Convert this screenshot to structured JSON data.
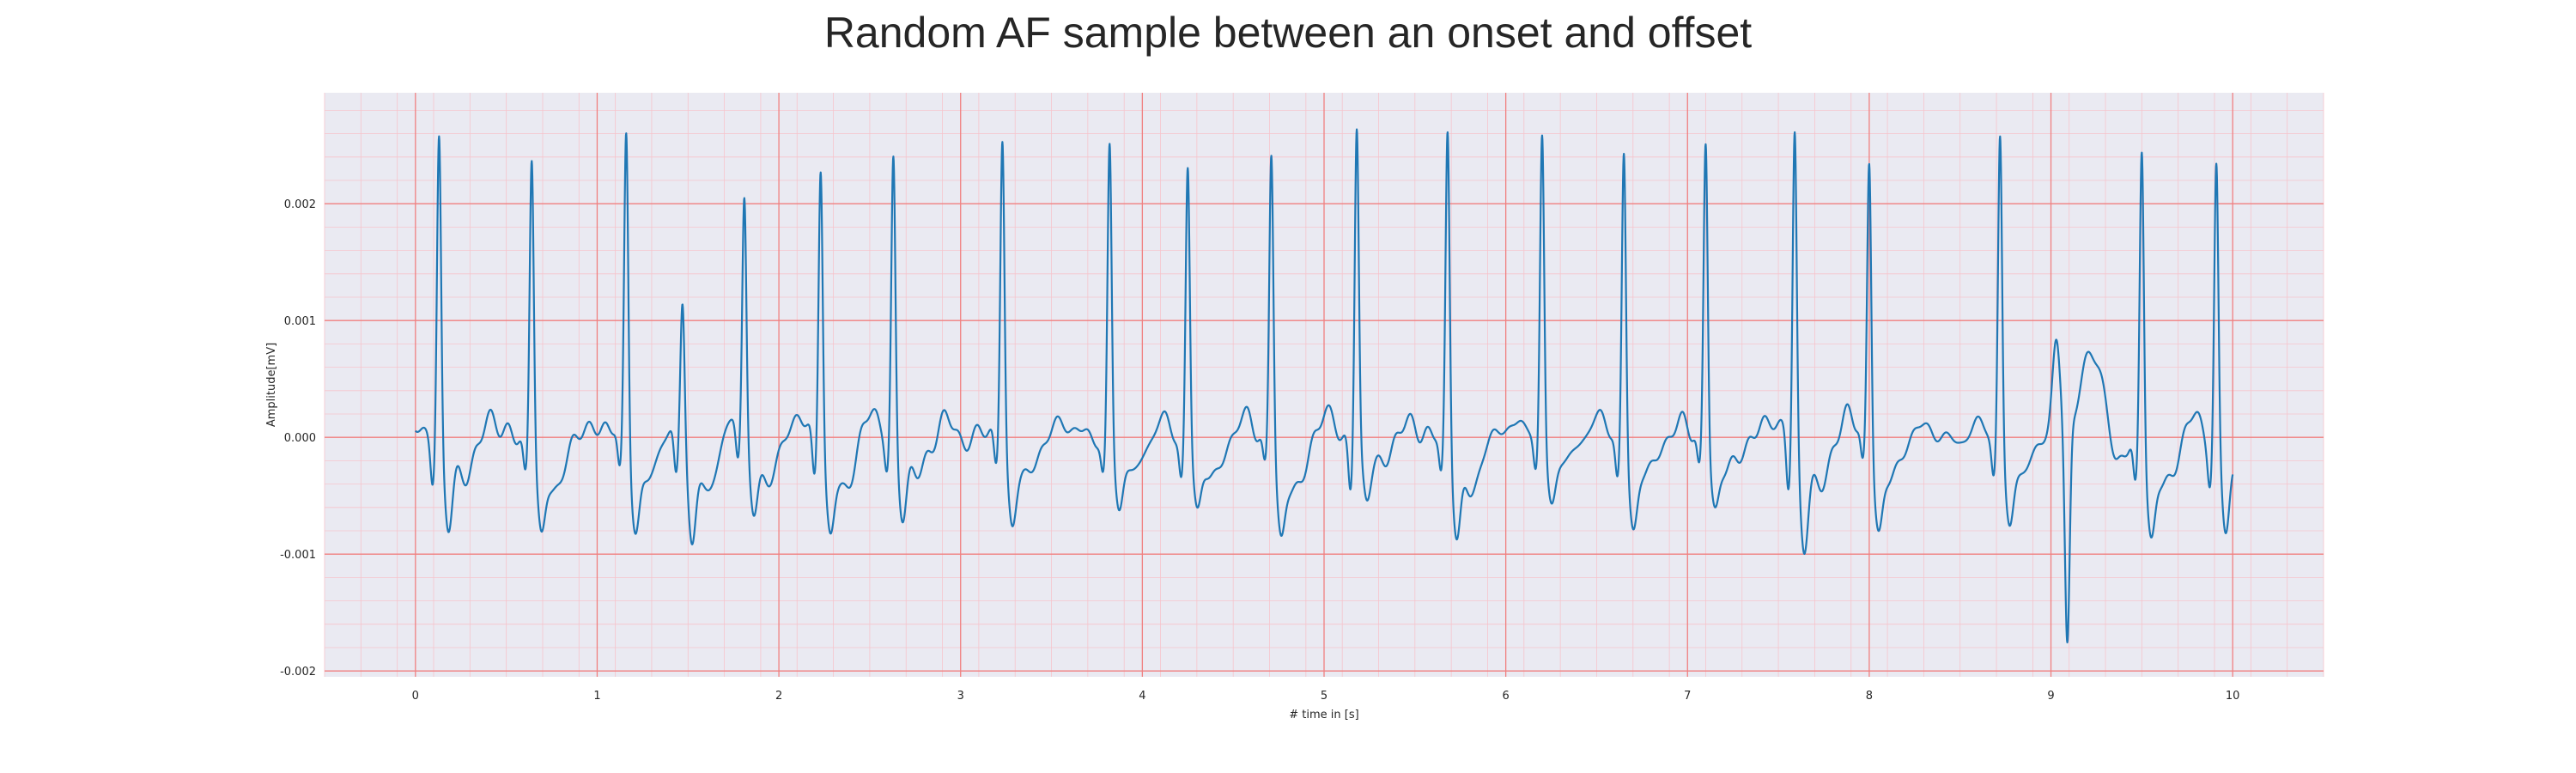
{
  "chart_data": {
    "type": "line",
    "title": "Random AF sample between an onset and offset",
    "xlabel": "# time in [s]",
    "ylabel": "Amplitude[mV]",
    "xlim": [
      -0.5,
      10.5
    ],
    "ylim": [
      -0.00205,
      0.00295
    ],
    "x_ticks": [
      0,
      1,
      2,
      3,
      4,
      5,
      6,
      7,
      8,
      9,
      10
    ],
    "x_tick_labels": [
      "0",
      "1",
      "2",
      "3",
      "4",
      "5",
      "6",
      "7",
      "8",
      "9",
      "10"
    ],
    "y_ticks": [
      -0.002,
      -0.001,
      0.0,
      0.001,
      0.002
    ],
    "y_tick_labels": [
      "-0.002",
      "-0.001",
      "0.000",
      "0.001",
      "0.002"
    ],
    "grid": true,
    "major_grid_color": "#f08080",
    "minor_grid_color": "#f6c4cc",
    "plot_background": "#eaeaf2",
    "series": [
      {
        "color": "#1f77b4",
        "beats": [
          {
            "t": 0.13,
            "r": 0.00263
          },
          {
            "t": 0.64,
            "r": 0.00248
          },
          {
            "t": 1.16,
            "r": 0.00265
          },
          {
            "t": 1.47,
            "r": 0.00111
          },
          {
            "t": 1.81,
            "r": 0.00199
          },
          {
            "t": 2.23,
            "r": 0.00237
          },
          {
            "t": 2.63,
            "r": 0.00239
          },
          {
            "t": 3.23,
            "r": 0.00258
          },
          {
            "t": 3.82,
            "r": 0.00252
          },
          {
            "t": 4.25,
            "r": 0.00233
          },
          {
            "t": 4.71,
            "r": 0.00248
          },
          {
            "t": 5.18,
            "r": 0.0027
          },
          {
            "t": 5.68,
            "r": 0.00266
          },
          {
            "t": 6.2,
            "r": 0.00262
          },
          {
            "t": 6.65,
            "r": 0.00253
          },
          {
            "t": 7.1,
            "r": 0.00257
          },
          {
            "t": 7.59,
            "r": 0.0027
          },
          {
            "t": 8.0,
            "r": 0.00242
          },
          {
            "t": 8.72,
            "r": 0.00266
          },
          {
            "t": 9.5,
            "r": 0.00256
          },
          {
            "t": 9.91,
            "r": 0.00236
          }
        ],
        "anomaly": {
          "t": 9.09,
          "min": -0.00187,
          "max": 0.00075
        },
        "t_start": 0.0,
        "t_end": 10.0,
        "baseline_noise_amplitude": 0.0001,
        "s_wave_min_range": [
          -0.00085,
          -0.0004
        ]
      }
    ]
  }
}
